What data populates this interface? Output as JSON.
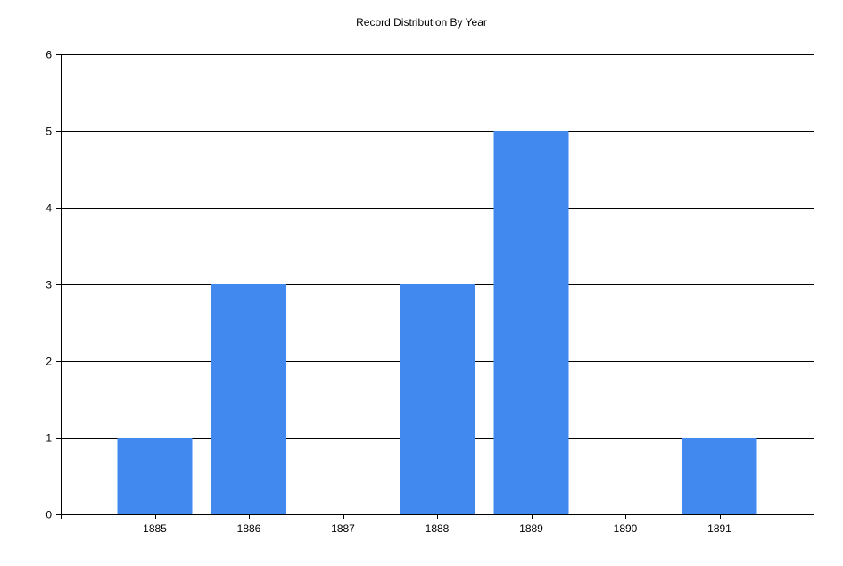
{
  "chart_data": {
    "type": "bar",
    "title": "Record Distribution By Year",
    "xlabel": "",
    "ylabel": "",
    "categories": [
      "1885",
      "1886",
      "1887",
      "1888",
      "1889",
      "1890",
      "1891"
    ],
    "values": [
      1,
      3,
      0,
      3,
      5,
      0,
      1
    ],
    "ylim": [
      0,
      6
    ],
    "yticks": [
      "0",
      "1",
      "2",
      "3",
      "4",
      "5",
      "6"
    ],
    "grid": true,
    "legend": "none",
    "colors": {
      "bar": "#4189EF",
      "grid": "#000000",
      "axis": "#000000"
    }
  }
}
